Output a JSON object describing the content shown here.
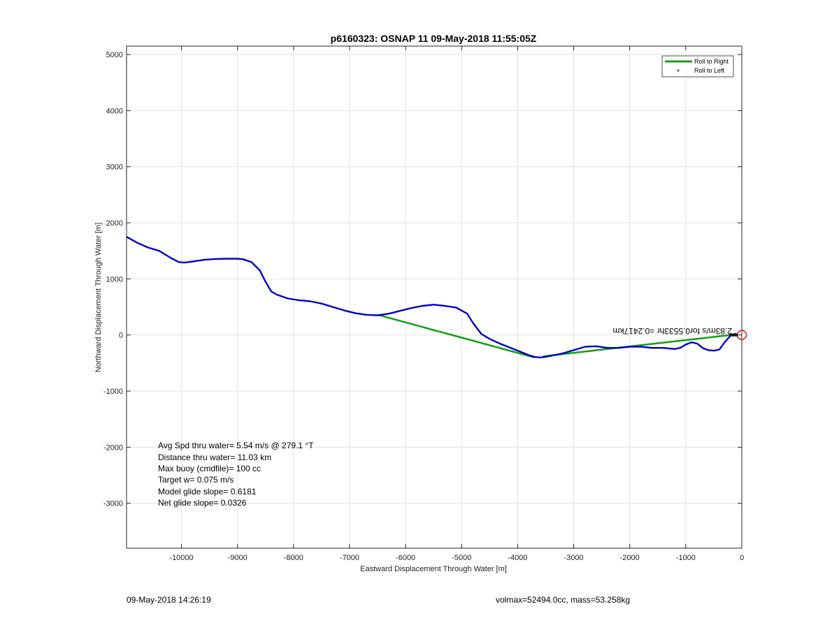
{
  "chart_data": {
    "type": "line",
    "title": "p6160323: OSNAP 11 09-May-2018 11:55:05Z",
    "xlabel": "Eastward Displacement Through Water [m]",
    "ylabel": "Northward Displacement Through Water [m]",
    "xlim": [
      -10980,
      0
    ],
    "ylim": [
      -3800,
      5150
    ],
    "xticks": [
      -10000,
      -9000,
      -8000,
      -7000,
      -6000,
      -5000,
      -4000,
      -3000,
      -2000,
      -1000,
      0
    ],
    "yticks": [
      -3000,
      -2000,
      -1000,
      0,
      1000,
      2000,
      3000,
      4000,
      5000
    ],
    "grid": true,
    "legend_position": "top-right",
    "series": [
      {
        "name": "Roll to Right",
        "color": "#1aa01a",
        "style": "line",
        "segments": [
          [
            [
              -6500,
              360
            ],
            [
              -3700,
              -400
            ]
          ],
          [
            [
              -3550,
              -380
            ],
            [
              -200,
              0
            ]
          ]
        ]
      },
      {
        "name": "Roll to Left",
        "color": "#ff0000",
        "style": "marker",
        "x": [],
        "y": []
      },
      {
        "name": "",
        "color": "#0000c8",
        "style": "line",
        "x": [
          -10980,
          -10800,
          -10600,
          -10400,
          -10200,
          -10050,
          -9950,
          -9800,
          -9600,
          -9400,
          -9200,
          -9000,
          -8900,
          -8750,
          -8600,
          -8500,
          -8400,
          -8300,
          -8100,
          -7900,
          -7700,
          -7500,
          -7300,
          -7100,
          -6900,
          -6700,
          -6500,
          -6300,
          -6100,
          -5900,
          -5700,
          -5500,
          -5300,
          -5100,
          -4900,
          -4800,
          -4650,
          -4500,
          -4300,
          -4100,
          -3900,
          -3800,
          -3700,
          -3600,
          -3500,
          -3400,
          -3200,
          -3000,
          -2800,
          -2600,
          -2400,
          -2200,
          -2000,
          -1800,
          -1600,
          -1400,
          -1200,
          -1100,
          -1000,
          -900,
          -800,
          -700,
          -600,
          -500,
          -400,
          -300,
          -200,
          -120,
          -80
        ],
        "y": [
          1750,
          1650,
          1560,
          1500,
          1380,
          1300,
          1290,
          1310,
          1340,
          1355,
          1360,
          1360,
          1350,
          1300,
          1150,
          950,
          780,
          720,
          650,
          620,
          600,
          560,
          500,
          440,
          390,
          360,
          350,
          380,
          430,
          480,
          520,
          540,
          520,
          490,
          380,
          220,
          20,
          -70,
          -160,
          -240,
          -320,
          -360,
          -390,
          -400,
          -390,
          -370,
          -330,
          -270,
          -210,
          -200,
          -230,
          -230,
          -210,
          -210,
          -230,
          -230,
          -250,
          -230,
          -170,
          -130,
          -150,
          -230,
          -270,
          -280,
          -260,
          -120,
          -10,
          20,
          0
        ]
      }
    ],
    "start_marker": {
      "x": 0,
      "y": 0,
      "color": "#e02020"
    },
    "annotation": "2.83m/s for0.5533hr =0.2417km"
  },
  "stats": [
    "Avg Spd thru water=  5.54 m/s @ 279.1 °T",
    "Distance thru water= 11.03 km",
    "Max buoy (cmdfile)= 100 cc",
    "Target w= 0.075 m/s",
    "Model glide slope= 0.6181",
    "Net glide slope= 0.0326"
  ],
  "footer": {
    "left": "09-May-2018 14:26:19",
    "right": "volmax=52494.0cc, mass=53.258kg"
  }
}
